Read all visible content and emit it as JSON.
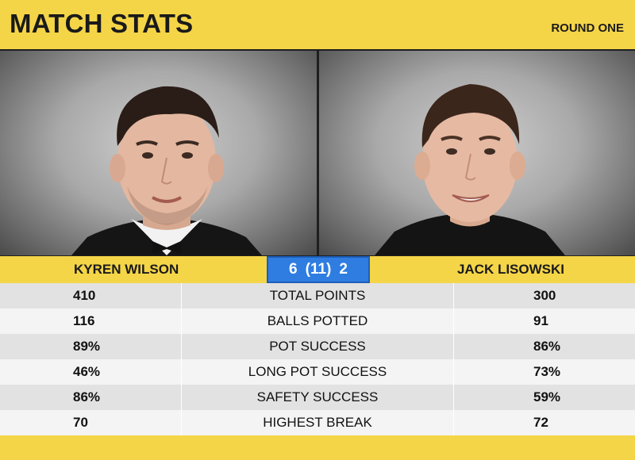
{
  "header": {
    "title": "MATCH STATS",
    "round": "ROUND ONE"
  },
  "players": {
    "left": {
      "name": "KYREN WILSON"
    },
    "right": {
      "name": "JACK LISOWSKI"
    }
  },
  "score": {
    "left_frames": "6",
    "best_of": "(11)",
    "right_frames": "2"
  },
  "stats": [
    {
      "label": "TOTAL POINTS",
      "left": "410",
      "right": "300"
    },
    {
      "label": "BALLS POTTED",
      "left": "116",
      "right": "91"
    },
    {
      "label": "POT SUCCESS",
      "left": "89%",
      "right": "86%"
    },
    {
      "label": "LONG POT SUCCESS",
      "left": "46%",
      "right": "73%"
    },
    {
      "label": "SAFETY SUCCESS",
      "left": "86%",
      "right": "59%"
    },
    {
      "label": "HIGHEST BREAK",
      "left": "70",
      "right": "72"
    }
  ],
  "colors": {
    "accent_yellow": "#f5d548",
    "score_blue": "#2f7de1"
  }
}
